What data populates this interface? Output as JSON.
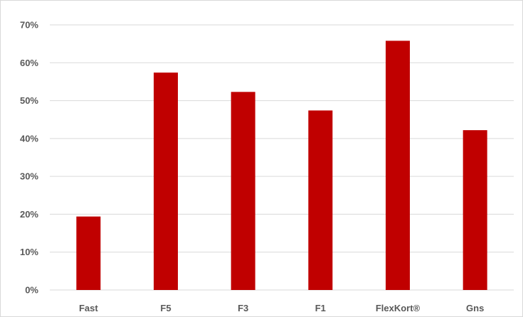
{
  "chart_data": {
    "type": "bar",
    "categories": [
      "Fast",
      "F5",
      "F3",
      "F1",
      "FlexKort®",
      "Gns"
    ],
    "values": [
      19.4,
      57.4,
      52.3,
      47.4,
      65.8,
      42.2
    ],
    "title": "",
    "xlabel": "",
    "ylabel": "",
    "ylim": [
      0,
      70
    ],
    "yticks": [
      0,
      10,
      20,
      30,
      40,
      50,
      60,
      70
    ],
    "ytick_labels": [
      "0%",
      "10%",
      "20%",
      "30%",
      "40%",
      "50%",
      "60%",
      "70%"
    ],
    "grid": true,
    "legend": "none",
    "bar_color": "#c00000",
    "grid_color": "#d9d9d9"
  }
}
